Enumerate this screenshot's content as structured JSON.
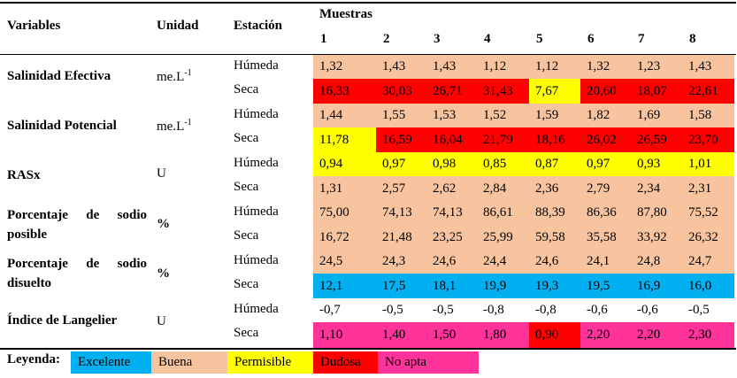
{
  "headers": {
    "variables": "Variables",
    "unidad": "Unidad",
    "estacion": "Estación",
    "muestras": "Muestras",
    "samples": [
      "1",
      "2",
      "3",
      "4",
      "5",
      "6",
      "7",
      "8"
    ]
  },
  "colors": {
    "excelente": "#00b0f0",
    "buena": "#f8c4a0",
    "permisible": "#ffff00",
    "dudosa": "#ff0000",
    "no_apta": "#ff3399",
    "none": "#ffffff"
  },
  "rows": [
    {
      "variable": "Salinidad Efectiva",
      "unit": "me.L",
      "unit_sup": "-1",
      "humeda": {
        "station": "Húmeda",
        "values": [
          "1,32",
          "1,43",
          "1,43",
          "1,12",
          "1,12",
          "1,32",
          "1,23",
          "1,43"
        ],
        "classes": [
          "buena",
          "buena",
          "buena",
          "buena",
          "buena",
          "buena",
          "buena",
          "buena"
        ]
      },
      "seca": {
        "station": "Seca",
        "values": [
          "16,33",
          "30,03",
          "26,71",
          "31,43",
          "7,67",
          "20,60",
          "18,07",
          "22,61"
        ],
        "classes": [
          "dudosa",
          "dudosa",
          "dudosa",
          "dudosa",
          "permisible",
          "dudosa",
          "dudosa",
          "dudosa"
        ]
      }
    },
    {
      "variable": "Salinidad Potencial",
      "unit": "me.L",
      "unit_sup": "-1",
      "humeda": {
        "station": "Húmeda",
        "values": [
          "1,44",
          "1,55",
          "1,53",
          "1,52",
          "1,59",
          "1,82",
          "1,69",
          "1,58"
        ],
        "classes": [
          "buena",
          "buena",
          "buena",
          "buena",
          "buena",
          "buena",
          "buena",
          "buena"
        ]
      },
      "seca": {
        "station": "Seca",
        "values": [
          "11,78",
          "16,59",
          "16,04",
          "21,79",
          "18,16",
          "26,02",
          "26,59",
          "23,70"
        ],
        "classes": [
          "permisible",
          "dudosa",
          "dudosa",
          "dudosa",
          "dudosa",
          "dudosa",
          "dudosa",
          "dudosa"
        ]
      }
    },
    {
      "variable": "RASx",
      "unit": "U",
      "unit_sup": "",
      "humeda": {
        "station": "Húmeda",
        "values": [
          "0,94",
          "0,97",
          "0,98",
          "0,85",
          "0,87",
          "0,97",
          "0,93",
          "1,01"
        ],
        "classes": [
          "permisible",
          "permisible",
          "permisible",
          "permisible",
          "permisible",
          "permisible",
          "permisible",
          "permisible"
        ]
      },
      "seca": {
        "station": "Seca",
        "values": [
          "1,31",
          "2,57",
          "2,62",
          "2,84",
          "2,36",
          "2,79",
          "2,34",
          "2,31"
        ],
        "classes": [
          "buena",
          "buena",
          "buena",
          "buena",
          "buena",
          "buena",
          "buena",
          "buena"
        ]
      }
    },
    {
      "variable_line1": "Porcentaje de sodio",
      "variable_line2": "posible",
      "unit": "%",
      "unit_sup": "",
      "humeda": {
        "station": "Húmeda",
        "values": [
          "75,00",
          "74,13",
          "74,13",
          "86,61",
          "88,39",
          "86,36",
          "87,80",
          "75,52"
        ],
        "classes": [
          "buena",
          "buena",
          "buena",
          "buena",
          "buena",
          "buena",
          "buena",
          "buena"
        ]
      },
      "seca": {
        "station": "Seca",
        "values": [
          "16,72",
          "21,48",
          "23,25",
          "25,99",
          "59,58",
          "35,58",
          "33,92",
          "26,32"
        ],
        "classes": [
          "buena",
          "buena",
          "buena",
          "buena",
          "buena",
          "buena",
          "buena",
          "buena"
        ]
      }
    },
    {
      "variable_line1": "Porcentaje de sodio",
      "variable_line2": "disuelto",
      "unit": "%",
      "unit_sup": "",
      "humeda": {
        "station": "Húmeda",
        "values": [
          "24,5",
          "24,3",
          "24,6",
          "24,4",
          "24,6",
          "24,1",
          "24,8",
          "24,7"
        ],
        "classes": [
          "buena",
          "buena",
          "buena",
          "buena",
          "buena",
          "buena",
          "buena",
          "buena"
        ]
      },
      "seca": {
        "station": "Seca",
        "values": [
          "12,1",
          "17,5",
          "18,1",
          "19,9",
          "19,3",
          "19,5",
          "16,9",
          "16,0"
        ],
        "classes": [
          "excelente",
          "excelente",
          "excelente",
          "excelente",
          "excelente",
          "excelente",
          "excelente",
          "excelente"
        ]
      }
    },
    {
      "variable": "Índice de Langelier",
      "unit": "U",
      "unit_sup": "",
      "humeda": {
        "station": "Húmeda",
        "values": [
          "-0,7",
          "-0,5",
          "-0,5",
          "-0,8",
          "-0,8",
          "-0,6",
          "-0,6",
          "-0,5"
        ],
        "classes": [
          "none",
          "none",
          "none",
          "none",
          "none",
          "none",
          "none",
          "none"
        ]
      },
      "seca": {
        "station": "Seca",
        "values": [
          "1,10",
          "1,40",
          "1,50",
          "1,80",
          "0,90",
          "2,20",
          "2,20",
          "2,30"
        ],
        "classes": [
          "no_apta",
          "no_apta",
          "no_apta",
          "no_apta",
          "dudosa",
          "no_apta",
          "no_apta",
          "no_apta"
        ]
      }
    }
  ],
  "legend": {
    "title": "Leyenda:",
    "items": [
      {
        "key": "excelente",
        "label": "Excelente"
      },
      {
        "key": "buena",
        "label": "Buena"
      },
      {
        "key": "permisible",
        "label": "Permisible"
      },
      {
        "key": "dudosa",
        "label": "Dudosa"
      },
      {
        "key": "no_apta",
        "label": "No apta"
      }
    ]
  }
}
